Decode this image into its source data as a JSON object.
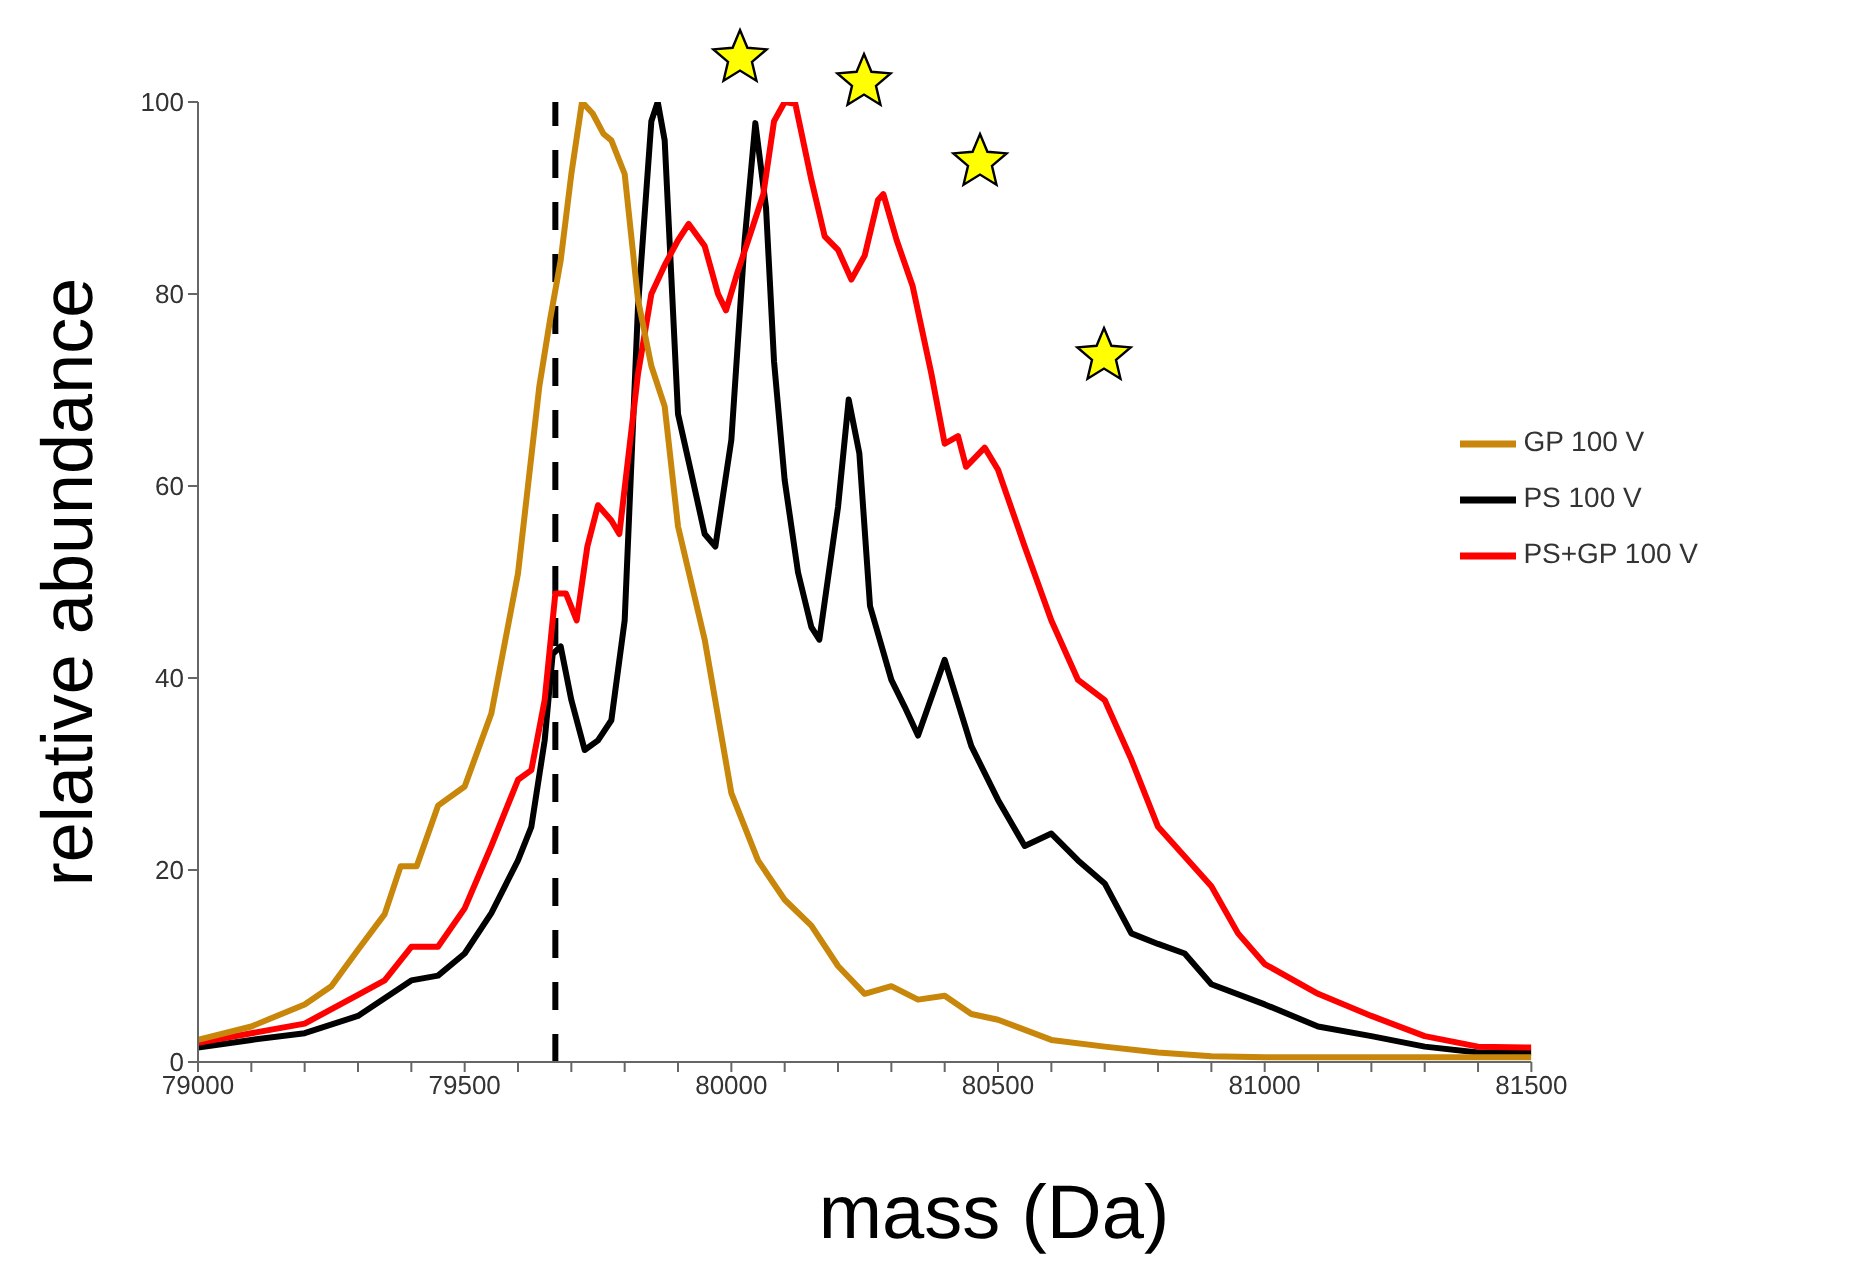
{
  "chart_data": {
    "type": "line",
    "xlabel": "mass (Da)",
    "ylabel": "relative abundance",
    "xlim": [
      79000,
      81500
    ],
    "xticks": [
      79000,
      {
        "value": 79100,
        "label": null
      },
      {
        "value": 79200,
        "label": null
      },
      {
        "value": 79300,
        "label": null
      },
      {
        "value": 79400,
        "label": null
      },
      79500,
      {
        "value": 79600,
        "label": null
      },
      {
        "value": 79700,
        "label": null
      },
      {
        "value": 79800,
        "label": null
      },
      {
        "value": 79900,
        "label": null
      },
      80000,
      {
        "value": 80100,
        "label": null
      },
      {
        "value": 80200,
        "label": null
      },
      {
        "value": 80300,
        "label": null
      },
      {
        "value": 80400,
        "label": null
      },
      80500,
      {
        "value": 80600,
        "label": null
      },
      {
        "value": 80700,
        "label": null
      },
      {
        "value": 80800,
        "label": null
      },
      {
        "value": 80900,
        "label": null
      },
      81000,
      {
        "value": 81100,
        "label": null
      },
      {
        "value": 81200,
        "label": null
      },
      {
        "value": 81300,
        "label": null
      },
      {
        "value": 81400,
        "label": null
      },
      81500
    ],
    "ylim": [
      0,
      100
    ],
    "yticks": [
      0,
      20,
      40,
      60,
      80,
      100
    ],
    "grid": false,
    "legend": "right",
    "marker": "none",
    "line_style": "solid",
    "ref_lines": [
      {
        "axis": "x",
        "value": 79670,
        "color": "#000000",
        "line_style": "dashed"
      }
    ],
    "series": [
      {
        "name": "PS 100 V",
        "color": "#000000",
        "x": [
          79000,
          79100,
          79200,
          79300,
          79400,
          79450,
          79500,
          79550,
          79600,
          79625,
          79650,
          79665,
          79680,
          79700,
          79725,
          79750,
          79775,
          79800,
          79825,
          79850,
          79862,
          79875,
          79900,
          79925,
          79950,
          79970,
          80000,
          80025,
          80045,
          80065,
          80080,
          80100,
          80125,
          80150,
          80165,
          80200,
          80220,
          80240,
          80260,
          80300,
          80325,
          80350,
          80400,
          80450,
          80500,
          80550,
          80600,
          80650,
          80700,
          80750,
          80800,
          80850,
          80900,
          81000,
          81100,
          81200,
          81300,
          81400,
          81500
        ],
        "values": [
          1.5,
          2.3,
          3,
          4.8,
          8.5,
          9,
          11.3,
          15.5,
          21,
          24.5,
          33.5,
          42.5,
          43.3,
          37.7,
          32.5,
          33.5,
          35.6,
          46,
          78.7,
          98,
          100,
          96,
          67.5,
          61.3,
          55,
          53.7,
          64.8,
          85.6,
          97.8,
          89,
          73,
          60.6,
          51,
          45.3,
          44,
          57.8,
          69,
          63.4,
          47.5,
          39.8,
          37,
          34,
          41.9,
          32.9,
          27.3,
          22.5,
          23.8,
          21,
          18.6,
          13.4,
          12.3,
          11.3,
          8.1,
          6,
          3.7,
          2.7,
          1.6,
          1,
          1
        ]
      },
      {
        "name": "PS+GP 100 V",
        "color": "#ff0000",
        "x": [
          79000,
          79100,
          79200,
          79300,
          79350,
          79400,
          79450,
          79500,
          79550,
          79600,
          79625,
          79650,
          79670,
          79690,
          79710,
          79730,
          79750,
          79775,
          79790,
          79825,
          79850,
          79875,
          79900,
          79920,
          79950,
          79975,
          79990,
          80010,
          80040,
          80060,
          80080,
          80100,
          80120,
          80150,
          80175,
          80200,
          80225,
          80250,
          80275,
          80285,
          80310,
          80340,
          80375,
          80400,
          80425,
          80440,
          80475,
          80500,
          80550,
          80600,
          80650,
          80700,
          80750,
          80800,
          80850,
          80900,
          80950,
          81000,
          81100,
          81200,
          81300,
          81400,
          81500
        ],
        "values": [
          2,
          3,
          4,
          7,
          8.5,
          12,
          12,
          16,
          22.5,
          29.4,
          30.4,
          37.7,
          48.8,
          48.8,
          46,
          53.7,
          58,
          56.4,
          55,
          71.7,
          80,
          83,
          85.6,
          87.3,
          85,
          80,
          78.3,
          82,
          87,
          90.4,
          98,
          100,
          99.8,
          91.9,
          86,
          84.6,
          81.5,
          84,
          89.8,
          90.4,
          85.6,
          80.8,
          71.7,
          64.4,
          65.2,
          62,
          64,
          61.7,
          53.7,
          46,
          39.8,
          37.7,
          31.5,
          24.5,
          21.4,
          18.3,
          13.4,
          10.2,
          7.1,
          4.8,
          2.7,
          1.6,
          1.5
        ]
      },
      {
        "name": "GP 100 V",
        "color": "#c8860a",
        "x": [
          79000,
          79100,
          79200,
          79250,
          79300,
          79350,
          79380,
          79410,
          79450,
          79500,
          79550,
          79600,
          79640,
          79660,
          79680,
          79700,
          79720,
          79740,
          79760,
          79775,
          79800,
          79825,
          79850,
          79875,
          79900,
          79950,
          80000,
          80050,
          80100,
          80150,
          80200,
          80250,
          80300,
          80350,
          80400,
          80450,
          80500,
          80600,
          80700,
          80800,
          80900,
          81000,
          81500
        ],
        "values": [
          2.3,
          3.7,
          6,
          7.9,
          11.7,
          15.4,
          20.4,
          20.4,
          26.7,
          28.7,
          36.3,
          50.9,
          70.4,
          77.3,
          83.5,
          92.5,
          100,
          98.8,
          96.7,
          96,
          92.5,
          79.4,
          72.5,
          68.3,
          55.8,
          44,
          28,
          21,
          16.9,
          14.2,
          10,
          7.1,
          7.9,
          6.5,
          6.9,
          5,
          4.4,
          2.3,
          1.6,
          1,
          0.6,
          0.5,
          0.5
        ]
      }
    ]
  }
}
